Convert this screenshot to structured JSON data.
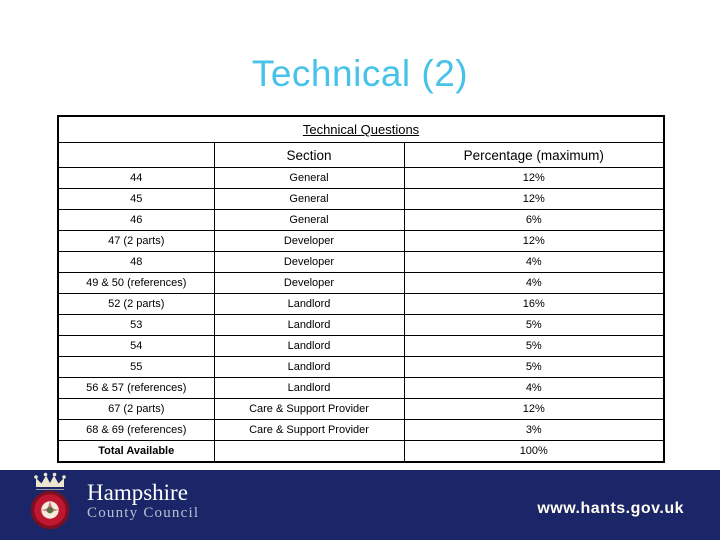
{
  "slide": {
    "title": "Technical (2)",
    "title_color": "#47c2e8"
  },
  "table": {
    "caption": "Technical Questions",
    "headers": {
      "question": "",
      "section": "Section",
      "percentage": "Percentage (maximum)"
    },
    "rows": [
      {
        "question": "44",
        "section": "General",
        "percentage": "12%"
      },
      {
        "question": "45",
        "section": "General",
        "percentage": "12%"
      },
      {
        "question": "46",
        "section": "General",
        "percentage": "6%"
      },
      {
        "question": "47 (2 parts)",
        "section": "Developer",
        "percentage": "12%"
      },
      {
        "question": "48",
        "section": "Developer",
        "percentage": "4%"
      },
      {
        "question": "49 & 50 (references)",
        "section": "Developer",
        "percentage": "4%"
      },
      {
        "question": "52 (2 parts)",
        "section": "Landlord",
        "percentage": "16%"
      },
      {
        "question": "53",
        "section": "Landlord",
        "percentage": "5%"
      },
      {
        "question": "54",
        "section": "Landlord",
        "percentage": "5%"
      },
      {
        "question": "55",
        "section": "Landlord",
        "percentage": "5%"
      },
      {
        "question": "56 & 57 (references)",
        "section": "Landlord",
        "percentage": "4%"
      },
      {
        "question": "67 (2 parts)",
        "section": "Care & Support Provider",
        "percentage": "12%"
      },
      {
        "question": "68 & 69 (references)",
        "section": "Care & Support Provider",
        "percentage": "3%"
      },
      {
        "question": "Total Available",
        "section": "",
        "percentage": "100%",
        "emphasis": true
      }
    ]
  },
  "footer": {
    "logo_title": "Hampshire",
    "logo_subtitle": "County Council",
    "url": "www.hants.gov.uk",
    "colors": {
      "bar": "#1a2668",
      "rose_red": "#c01731",
      "rose_ring": "#7d0f22",
      "crown_cream": "#ece5cf"
    }
  }
}
